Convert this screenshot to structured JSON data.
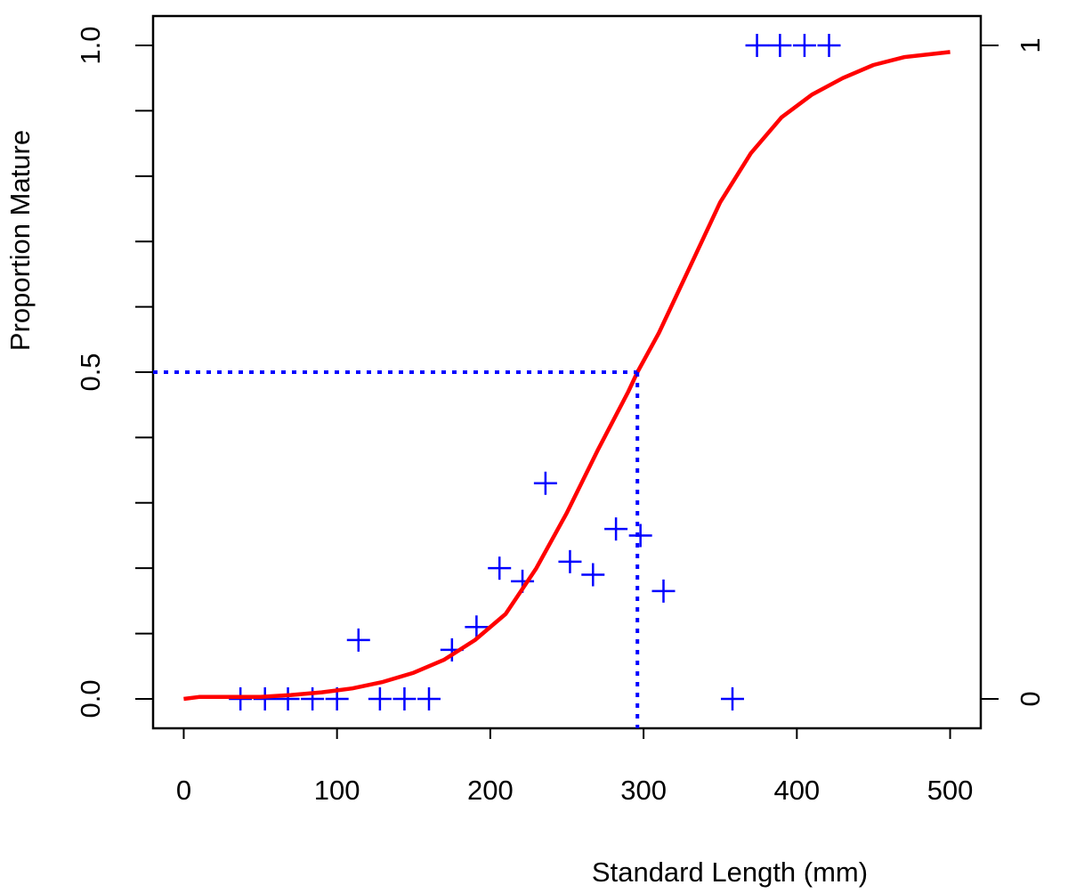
{
  "chart_data": {
    "type": "scatter",
    "title": "",
    "xlabel": "Standard Length (mm)",
    "ylabel": "Proportion Mature",
    "xlim": [
      -20,
      520
    ],
    "ylim": [
      -0.045,
      1.045
    ],
    "x_ticks": [
      0,
      100,
      200,
      300,
      400,
      500
    ],
    "x_tick_labels": [
      "0",
      "100",
      "200",
      "300",
      "400",
      "500"
    ],
    "y_ticks": [
      0.0,
      0.5,
      1.0
    ],
    "y_tick_labels": [
      "0.0",
      "0.5",
      "1.0"
    ],
    "y_minor_ticks": [
      0.1,
      0.2,
      0.3,
      0.4,
      0.6,
      0.7,
      0.8,
      0.9
    ],
    "y2_ticks": [
      0,
      1
    ],
    "y2_tick_labels": [
      "0",
      "1"
    ],
    "grid": false,
    "legend": "none",
    "series": [
      {
        "kind": "scatter",
        "marker": "plus",
        "color": "#0000ff",
        "points": [
          {
            "x": 37,
            "y": 0.0
          },
          {
            "x": 53,
            "y": 0.0
          },
          {
            "x": 68,
            "y": 0.0
          },
          {
            "x": 84,
            "y": 0.0
          },
          {
            "x": 100,
            "y": 0.0
          },
          {
            "x": 128,
            "y": 0.0
          },
          {
            "x": 144,
            "y": 0.0
          },
          {
            "x": 160,
            "y": 0.0
          },
          {
            "x": 114,
            "y": 0.09
          },
          {
            "x": 175,
            "y": 0.075
          },
          {
            "x": 191,
            "y": 0.11
          },
          {
            "x": 206,
            "y": 0.2
          },
          {
            "x": 221,
            "y": 0.18
          },
          {
            "x": 236,
            "y": 0.33
          },
          {
            "x": 252,
            "y": 0.21
          },
          {
            "x": 267,
            "y": 0.19
          },
          {
            "x": 282,
            "y": 0.26
          },
          {
            "x": 298,
            "y": 0.25
          },
          {
            "x": 313,
            "y": 0.165
          },
          {
            "x": 358,
            "y": 0.0
          },
          {
            "x": 374,
            "y": 1.0
          },
          {
            "x": 389,
            "y": 1.0
          },
          {
            "x": 405,
            "y": 1.0
          },
          {
            "x": 421,
            "y": 1.0
          }
        ]
      },
      {
        "kind": "line",
        "style": "solid",
        "color": "#ff0000",
        "x": [
          0,
          10,
          30,
          50,
          70,
          90,
          110,
          130,
          150,
          170,
          190,
          210,
          230,
          250,
          270,
          290,
          296,
          310,
          330,
          350,
          370,
          390,
          410,
          430,
          450,
          470,
          500
        ],
        "y": [
          0.0,
          0.003,
          0.003,
          0.003,
          0.006,
          0.01,
          0.016,
          0.026,
          0.04,
          0.06,
          0.09,
          0.13,
          0.2,
          0.285,
          0.38,
          0.47,
          0.5,
          0.56,
          0.66,
          0.76,
          0.835,
          0.89,
          0.925,
          0.95,
          0.97,
          0.982,
          0.99
        ]
      },
      {
        "kind": "line",
        "style": "dotted",
        "color": "#0000ff",
        "x": [
          -20,
          296
        ],
        "y": [
          0.5,
          0.5
        ]
      },
      {
        "kind": "line",
        "style": "dotted",
        "color": "#0000ff",
        "x": [
          296,
          296
        ],
        "y": [
          0.5,
          -0.045
        ]
      }
    ]
  }
}
